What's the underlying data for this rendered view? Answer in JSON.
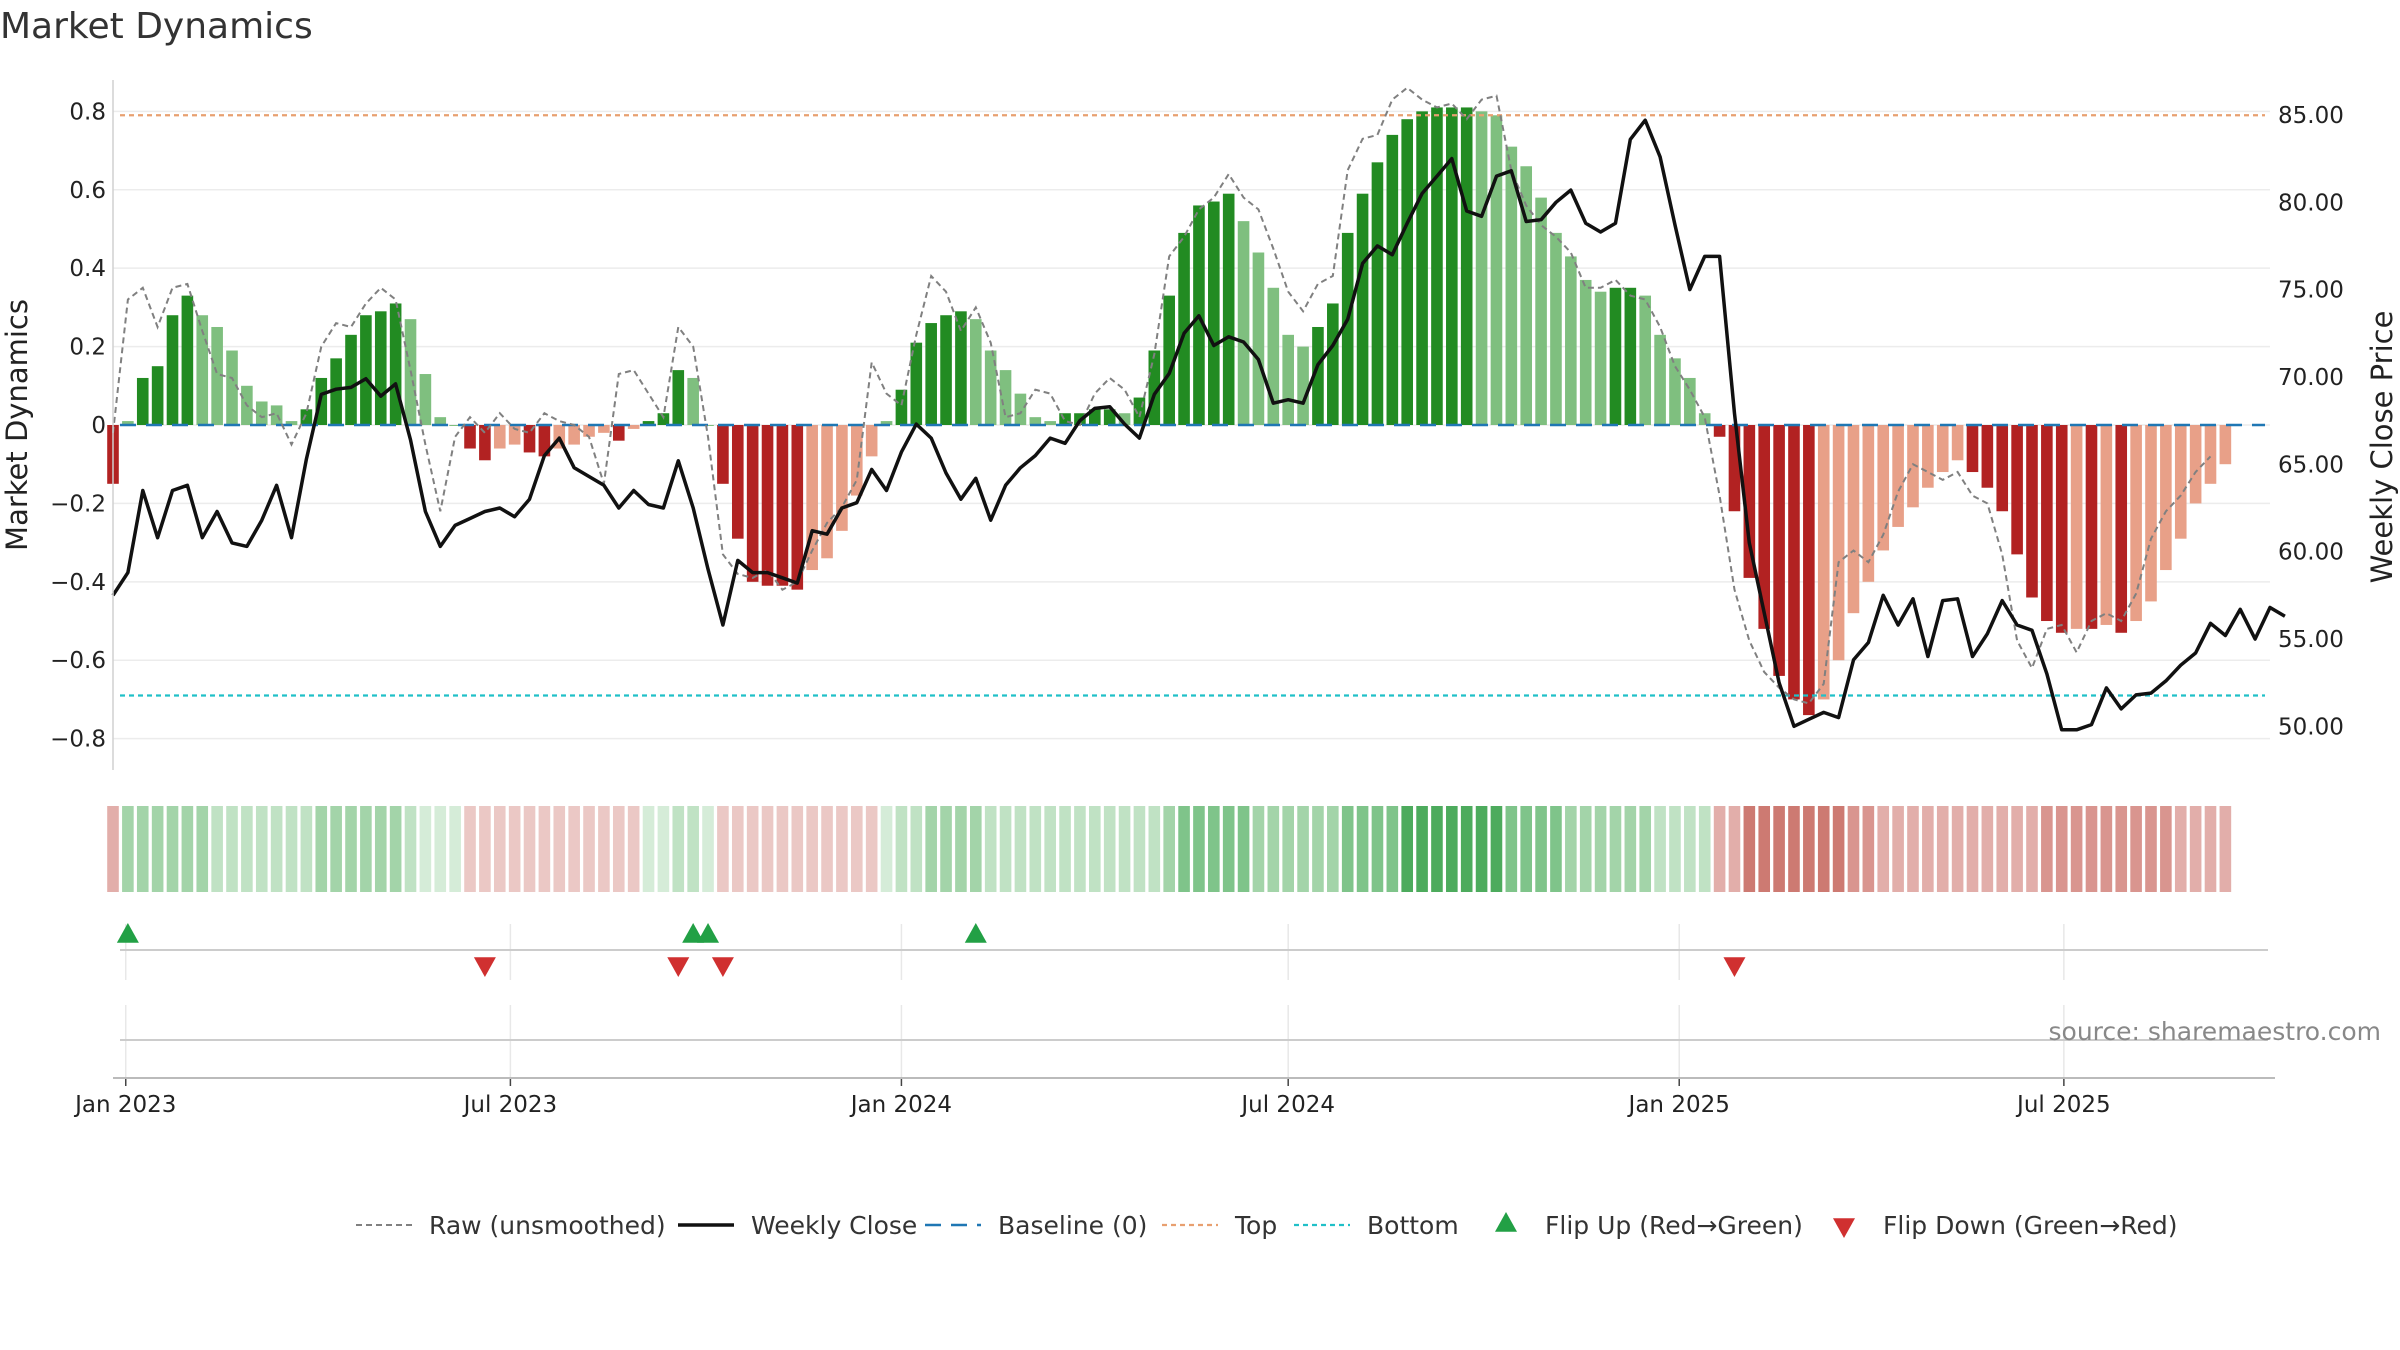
{
  "chart_data": {
    "type": "bar",
    "title": "Market Dynamics",
    "ylabel_left": "Market Dynamics",
    "ylabel_right": "Weekly Close Price",
    "ylim_left": [
      -0.88,
      0.88
    ],
    "ylim_right": [
      47.5,
      87.0
    ],
    "yticks_left": [
      {
        "value": 0.8,
        "label": "0.8"
      },
      {
        "value": 0.6,
        "label": "0.6"
      },
      {
        "value": 0.4,
        "label": "0.4"
      },
      {
        "value": 0.2,
        "label": "0.2"
      },
      {
        "value": 0.0,
        "label": "0"
      },
      {
        "value": -0.2,
        "label": "−0.2"
      },
      {
        "value": -0.4,
        "label": "−0.4"
      },
      {
        "value": -0.6,
        "label": "−0.6"
      },
      {
        "value": -0.8,
        "label": "−0.8"
      }
    ],
    "yticks_right": [
      {
        "value": 85,
        "label": "85.00"
      },
      {
        "value": 80,
        "label": "80.00"
      },
      {
        "value": 75,
        "label": "75.00"
      },
      {
        "value": 70,
        "label": "70.00"
      },
      {
        "value": 65,
        "label": "65.00"
      },
      {
        "value": 60,
        "label": "60.00"
      },
      {
        "value": 55,
        "label": "55.00"
      },
      {
        "value": 50,
        "label": "50.00"
      }
    ],
    "x_range": [
      "2022-12-26",
      "2025-10-06"
    ],
    "x_start": "2022-12-26",
    "x_step_days": 7,
    "xticks": [
      {
        "date": "2023-01-01",
        "label": "Jan 2023"
      },
      {
        "date": "2023-07-01",
        "label": "Jul 2023"
      },
      {
        "date": "2024-01-01",
        "label": "Jan 2024"
      },
      {
        "date": "2024-07-01",
        "label": "Jul 2024"
      },
      {
        "date": "2025-01-01",
        "label": "Jan 2025"
      },
      {
        "date": "2025-07-01",
        "label": "Jul 2025"
      }
    ],
    "top_threshold": 0.79,
    "bottom_threshold": -0.69,
    "baseline": 0,
    "dynamics": [
      -0.15,
      0.01,
      0.12,
      0.15,
      0.28,
      0.33,
      0.28,
      0.25,
      0.19,
      0.1,
      0.06,
      0.05,
      0.01,
      0.04,
      0.12,
      0.17,
      0.23,
      0.28,
      0.29,
      0.31,
      0.27,
      0.13,
      0.02,
      0.0,
      -0.06,
      -0.09,
      -0.06,
      -0.05,
      -0.07,
      -0.08,
      -0.06,
      -0.05,
      -0.03,
      -0.02,
      -0.04,
      -0.01,
      0.01,
      0.03,
      0.14,
      0.12,
      0.0,
      -0.15,
      -0.29,
      -0.4,
      -0.41,
      -0.41,
      -0.42,
      -0.37,
      -0.34,
      -0.27,
      -0.18,
      -0.08,
      0.01,
      0.09,
      0.21,
      0.26,
      0.28,
      0.29,
      0.27,
      0.19,
      0.14,
      0.08,
      0.02,
      0.01,
      0.03,
      0.03,
      0.04,
      0.04,
      0.03,
      0.07,
      0.19,
      0.33,
      0.49,
      0.56,
      0.57,
      0.59,
      0.52,
      0.44,
      0.35,
      0.23,
      0.2,
      0.25,
      0.31,
      0.49,
      0.59,
      0.67,
      0.74,
      0.78,
      0.8,
      0.81,
      0.81,
      0.81,
      0.8,
      0.79,
      0.71,
      0.66,
      0.58,
      0.49,
      0.43,
      0.37,
      0.34,
      0.35,
      0.35,
      0.33,
      0.23,
      0.17,
      0.12,
      0.03,
      -0.03,
      -0.22,
      -0.39,
      -0.52,
      -0.64,
      -0.7,
      -0.74,
      -0.7,
      -0.6,
      -0.48,
      -0.4,
      -0.32,
      -0.26,
      -0.21,
      -0.16,
      -0.12,
      -0.09,
      -0.12,
      -0.16,
      -0.22,
      -0.33,
      -0.44,
      -0.5,
      -0.53,
      -0.52,
      -0.52,
      -0.51,
      -0.53,
      -0.5,
      -0.45,
      -0.37,
      -0.29,
      -0.2,
      -0.15,
      -0.1
    ],
    "raw": [
      -0.02,
      0.32,
      0.35,
      0.25,
      0.35,
      0.36,
      0.24,
      0.13,
      0.12,
      0.05,
      0.02,
      0.03,
      -0.05,
      0.03,
      0.2,
      0.26,
      0.25,
      0.31,
      0.35,
      0.32,
      0.14,
      -0.05,
      -0.22,
      -0.03,
      0.02,
      -0.02,
      0.03,
      -0.01,
      -0.02,
      0.03,
      0.01,
      0.0,
      -0.03,
      -0.15,
      0.13,
      0.14,
      0.08,
      0.02,
      0.25,
      0.2,
      -0.03,
      -0.33,
      -0.38,
      -0.39,
      -0.37,
      -0.42,
      -0.4,
      -0.32,
      -0.25,
      -0.21,
      -0.14,
      0.16,
      0.08,
      0.05,
      0.23,
      0.38,
      0.34,
      0.24,
      0.3,
      0.21,
      0.02,
      0.03,
      0.09,
      0.08,
      0.01,
      0.0,
      0.08,
      0.12,
      0.09,
      0.02,
      0.18,
      0.43,
      0.48,
      0.55,
      0.58,
      0.64,
      0.58,
      0.55,
      0.45,
      0.34,
      0.29,
      0.36,
      0.38,
      0.65,
      0.73,
      0.74,
      0.83,
      0.86,
      0.83,
      0.81,
      0.82,
      0.78,
      0.83,
      0.84,
      0.65,
      0.56,
      0.51,
      0.48,
      0.44,
      0.35,
      0.35,
      0.37,
      0.33,
      0.32,
      0.25,
      0.15,
      0.09,
      0.02,
      -0.18,
      -0.42,
      -0.55,
      -0.63,
      -0.67,
      -0.7,
      -0.71,
      -0.66,
      -0.35,
      -0.32,
      -0.35,
      -0.28,
      -0.17,
      -0.1,
      -0.12,
      -0.14,
      -0.12,
      -0.18,
      -0.2,
      -0.33,
      -0.55,
      -0.62,
      -0.52,
      -0.51,
      -0.58,
      -0.5,
      -0.48,
      -0.5,
      -0.43,
      -0.29,
      -0.22,
      -0.18,
      -0.12,
      -0.08
    ],
    "weekly_close": [
      57.5,
      58.8,
      63.5,
      60.8,
      63.5,
      63.8,
      60.8,
      62.3,
      60.5,
      60.3,
      61.8,
      63.8,
      60.8,
      65.3,
      69.0,
      69.3,
      69.4,
      69.9,
      68.9,
      69.6,
      66.4,
      62.3,
      60.3,
      61.5,
      61.9,
      62.3,
      62.5,
      62.0,
      63.0,
      65.5,
      66.5,
      64.8,
      64.3,
      63.8,
      62.5,
      63.5,
      62.7,
      62.5,
      65.2,
      62.5,
      59.0,
      55.8,
      59.5,
      58.8,
      58.8,
      58.5,
      58.2,
      61.2,
      61.0,
      62.5,
      62.8,
      64.7,
      63.5,
      65.7,
      67.3,
      66.5,
      64.5,
      63.0,
      64.2,
      61.8,
      63.8,
      64.8,
      65.5,
      66.5,
      66.2,
      67.5,
      68.2,
      68.3,
      67.3,
      66.5,
      69.0,
      70.2,
      72.5,
      73.5,
      71.8,
      72.3,
      72.0,
      71.0,
      68.5,
      68.7,
      68.5,
      70.7,
      71.8,
      73.3,
      76.5,
      77.5,
      77.0,
      78.8,
      80.5,
      81.5,
      82.5,
      79.5,
      79.2,
      81.5,
      81.8,
      78.9,
      79.0,
      80.0,
      80.7,
      78.8,
      78.3,
      78.8,
      83.6,
      84.7,
      82.6,
      78.7,
      75.0,
      76.9,
      76.9,
      67.9,
      60.5,
      56.5,
      52.5,
      50.0,
      50.4,
      50.8,
      50.5,
      53.8,
      54.8,
      57.5,
      55.8,
      57.3,
      54.0,
      57.2,
      57.3,
      54.0,
      55.3,
      57.2,
      55.8,
      55.5,
      53.0,
      49.8,
      49.8,
      50.1,
      52.2,
      51.0,
      51.8,
      51.9,
      52.6,
      53.5,
      54.2,
      55.9,
      55.2,
      56.7,
      55.0,
      56.8,
      56.3
    ],
    "strength_strip_levels": [
      1,
      2,
      2,
      2,
      2,
      2,
      2,
      1,
      1,
      1,
      1,
      1,
      1,
      1,
      2,
      2,
      2,
      2,
      2,
      2,
      1,
      0,
      0,
      0,
      0,
      0,
      0,
      0,
      0,
      0,
      0,
      0,
      0,
      0,
      0,
      0,
      0,
      0,
      1,
      1,
      0,
      0,
      0,
      0,
      0,
      0,
      0,
      0,
      0,
      0,
      0,
      0,
      0,
      1,
      1,
      2,
      2,
      2,
      2,
      1,
      1,
      1,
      1,
      1,
      1,
      1,
      1,
      1,
      1,
      1,
      1,
      2,
      3,
      3,
      3,
      3,
      3,
      2,
      2,
      2,
      2,
      2,
      2,
      3,
      3,
      3,
      3,
      4,
      4,
      4,
      4,
      4,
      4,
      4,
      3,
      3,
      3,
      3,
      2,
      2,
      2,
      2,
      2,
      2,
      1,
      1,
      1,
      1,
      1,
      1,
      3,
      3,
      3,
      3,
      3,
      3,
      3,
      2,
      2,
      1,
      1,
      1,
      1,
      1,
      1,
      1,
      1,
      1,
      1,
      1,
      2,
      2,
      2,
      2,
      2,
      2,
      2,
      2,
      2,
      1,
      1,
      1,
      1,
      1,
      0
    ],
    "flip_up_indices": [
      1,
      39,
      40,
      58
    ],
    "flip_down_indices": [
      25,
      38,
      41,
      109
    ],
    "legend": [
      {
        "key": "raw",
        "label": "Raw (unsmoothed)"
      },
      {
        "key": "close",
        "label": "Weekly Close"
      },
      {
        "key": "baseline",
        "label": "Baseline (0)"
      },
      {
        "key": "top",
        "label": "Top"
      },
      {
        "key": "bottom",
        "label": "Bottom"
      },
      {
        "key": "flip_up",
        "label": "Flip Up (Red→Green)"
      },
      {
        "key": "flip_down",
        "label": "Flip Down (Green→Red)"
      }
    ],
    "grid": true,
    "legend_position": "bottom-center"
  },
  "source_text": "source: sharemaestro.com",
  "colors": {
    "green_strong": "#228b22",
    "green_light": "#7fbf7f",
    "red_strong": "#b22222",
    "red_light": "#e8a088",
    "close_line": "#111111",
    "raw_line": "#808080",
    "baseline": "#1f77b4",
    "top": "#e8a070",
    "bottom": "#20c0c8",
    "flip_up": "#22a045",
    "flip_down": "#d03030",
    "strip_green": [
      "#d5ecd8",
      "#c0e2c4",
      "#a3d4a9",
      "#7fc48a",
      "#4dab5d"
    ],
    "strip_red": [
      "#ebc8c5",
      "#e2aeaa",
      "#d9958f",
      "#cd7a72"
    ]
  }
}
